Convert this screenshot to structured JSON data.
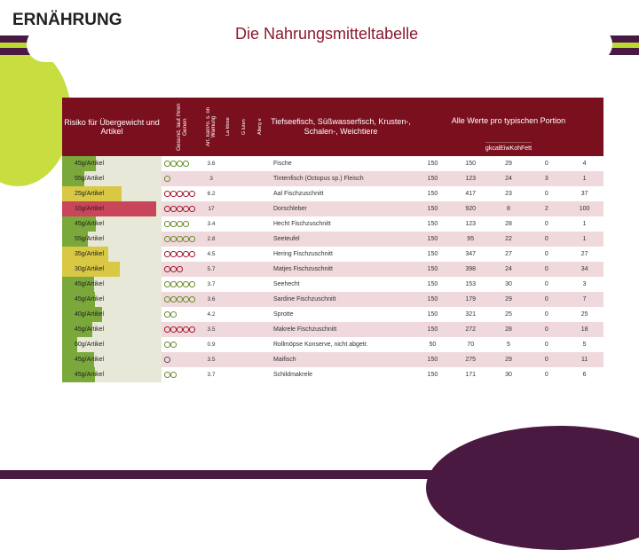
{
  "titles": {
    "left": "ERNÄHRUNG",
    "right": "Die Nahrungsmitteltabelle"
  },
  "headers": {
    "risk": "Risiko für Übergewicht und Artikel",
    "rating": "Gesund, laut Ihren Genen",
    "artval": "Art. kal/Po. s. on Warnung",
    "cats": [
      "La ktose",
      "G luten",
      "Allerg e"
    ],
    "food": "Tiefseefisch, Süßwasserfisch, Krusten-, Schalen-, Weichtiere",
    "valsTop": "Alle Werte pro typischen Portion",
    "vals": [
      "g",
      "kcal",
      "Eiw",
      "Koh",
      "Fett"
    ]
  },
  "colors": {
    "riskGreen": "#7aa83a",
    "riskYellow": "#d8c843",
    "riskRed": "#c8455a"
  },
  "rows": [
    {
      "risk": "45g/Artikel",
      "riskBar": 34,
      "riskColor": "riskGreen",
      "rating": "gggg",
      "artval": "3.6",
      "food": "Fische",
      "g": "150",
      "kcal": "150",
      "eiw": "29",
      "koh": "0",
      "fett": "4"
    },
    {
      "risk": "55g/Artikel",
      "riskBar": 22,
      "riskColor": "riskGreen",
      "rating": "g",
      "artval": "3",
      "food": "Tintenfisch (Octopus sp.) Fleisch",
      "g": "150",
      "kcal": "123",
      "eiw": "24",
      "koh": "3",
      "fett": "1"
    },
    {
      "risk": "25g/Artikel",
      "riskBar": 60,
      "riskColor": "riskYellow",
      "rating": "rrrrr",
      "artval": "6.2",
      "food": "Aal Fischzuschnitt",
      "g": "150",
      "kcal": "417",
      "eiw": "23",
      "koh": "0",
      "fett": "37"
    },
    {
      "risk": "10g/Artikel",
      "riskBar": 95,
      "riskColor": "riskRed",
      "rating": "rrrrr",
      "artval": "17",
      "food": "Dorschleber",
      "g": "150",
      "kcal": "920",
      "eiw": "8",
      "koh": "2",
      "fett": "100"
    },
    {
      "risk": "45g/Artikel",
      "riskBar": 34,
      "riskColor": "riskGreen",
      "rating": "gggg",
      "artval": "3.4",
      "food": "Hecht Fischzuschnitt",
      "g": "150",
      "kcal": "123",
      "eiw": "28",
      "koh": "0",
      "fett": "1"
    },
    {
      "risk": "55g/Artikel",
      "riskBar": 26,
      "riskColor": "riskGreen",
      "rating": "ggggg",
      "artval": "2.8",
      "food": "Seeteufel",
      "g": "150",
      "kcal": "95",
      "eiw": "22",
      "koh": "0",
      "fett": "1"
    },
    {
      "risk": "35g/Artikel",
      "riskBar": 46,
      "riskColor": "riskYellow",
      "rating": "rrrrr",
      "artval": "4.5",
      "food": "Hering Fischzuschnitt",
      "g": "150",
      "kcal": "347",
      "eiw": "27",
      "koh": "0",
      "fett": "27"
    },
    {
      "risk": "30g/Artikel",
      "riskBar": 58,
      "riskColor": "riskYellow",
      "rating": "rrr",
      "artval": "5.7",
      "food": "Matjes Fischzuschnitt",
      "g": "150",
      "kcal": "398",
      "eiw": "24",
      "koh": "0",
      "fett": "34"
    },
    {
      "risk": "45g/Artikel",
      "riskBar": 32,
      "riskColor": "riskGreen",
      "rating": "ggggg",
      "artval": "3.7",
      "food": "Seehecht",
      "g": "150",
      "kcal": "153",
      "eiw": "30",
      "koh": "0",
      "fett": "3"
    },
    {
      "risk": "45g/Artikel",
      "riskBar": 33,
      "riskColor": "riskGreen",
      "rating": "ggggg",
      "artval": "3.6",
      "food": "Sardine Fischzuschnitt",
      "g": "150",
      "kcal": "179",
      "eiw": "29",
      "koh": "0",
      "fett": "7"
    },
    {
      "risk": "40g/Artikel",
      "riskBar": 40,
      "riskColor": "riskGreen",
      "rating": "gg",
      "artval": "4.2",
      "food": "Sprotte",
      "g": "150",
      "kcal": "321",
      "eiw": "25",
      "koh": "0",
      "fett": "25"
    },
    {
      "risk": "45g/Artikel",
      "riskBar": 30,
      "riskColor": "riskGreen",
      "rating": "rrrrr",
      "artval": "3.5",
      "food": "Makrele Fischzuschnitt",
      "g": "150",
      "kcal": "272",
      "eiw": "28",
      "koh": "0",
      "fett": "18"
    },
    {
      "risk": "60g/Artikel",
      "riskBar": 15,
      "riskColor": "riskGreen",
      "rating": "gg",
      "artval": "0.9",
      "food": "Rollmöpse Konserve, nicht abgetr.",
      "g": "50",
      "kcal": "70",
      "eiw": "5",
      "koh": "0",
      "fett": "5"
    },
    {
      "risk": "45g/Artikel",
      "riskBar": 32,
      "riskColor": "riskGreen",
      "rating": "n",
      "artval": "3.5",
      "food": "Maifisch",
      "g": "150",
      "kcal": "275",
      "eiw": "29",
      "koh": "0",
      "fett": "11"
    },
    {
      "risk": "45g/Artikel",
      "riskBar": 33,
      "riskColor": "riskGreen",
      "rating": "gg",
      "artval": "3.7",
      "food": "Schildmakrele",
      "g": "150",
      "kcal": "171",
      "eiw": "30",
      "koh": "0",
      "fett": "6"
    }
  ]
}
